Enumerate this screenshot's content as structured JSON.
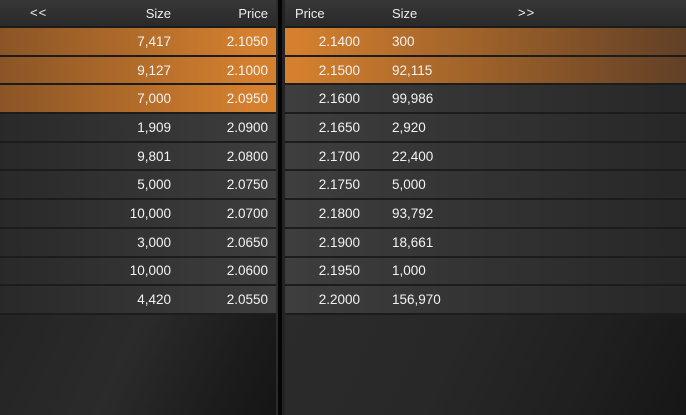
{
  "left_panel": {
    "nav_label": "<<",
    "columns": {
      "size": "Size",
      "price": "Price"
    },
    "rows": [
      {
        "size": "7,417",
        "price": "2.1050",
        "highlighted": true
      },
      {
        "size": "9,127",
        "price": "2.1000",
        "highlighted": true
      },
      {
        "size": "7,000",
        "price": "2.0950",
        "highlighted": true
      },
      {
        "size": "1,909",
        "price": "2.0900",
        "highlighted": false
      },
      {
        "size": "9,801",
        "price": "2.0800",
        "highlighted": false
      },
      {
        "size": "5,000",
        "price": "2.0750",
        "highlighted": false
      },
      {
        "size": "10,000",
        "price": "2.0700",
        "highlighted": false
      },
      {
        "size": "3,000",
        "price": "2.0650",
        "highlighted": false
      },
      {
        "size": "10,000",
        "price": "2.0600",
        "highlighted": false
      },
      {
        "size": "4,420",
        "price": "2.0550",
        "highlighted": false
      }
    ]
  },
  "right_panel": {
    "nav_label": ">>",
    "columns": {
      "price": "Price",
      "size": "Size"
    },
    "rows": [
      {
        "price": "2.1400",
        "size": "300",
        "highlighted": true
      },
      {
        "price": "2.1500",
        "size": "92,115",
        "highlighted": true
      },
      {
        "price": "2.1600",
        "size": "99,986",
        "highlighted": false
      },
      {
        "price": "2.1650",
        "size": "2,920",
        "highlighted": false
      },
      {
        "price": "2.1700",
        "size": "22,400",
        "highlighted": false
      },
      {
        "price": "2.1750",
        "size": "5,000",
        "highlighted": false
      },
      {
        "price": "2.1800",
        "size": "93,792",
        "highlighted": false
      },
      {
        "price": "2.1900",
        "size": "18,661",
        "highlighted": false
      },
      {
        "price": "2.1950",
        "size": "1,000",
        "highlighted": false
      },
      {
        "price": "2.2000",
        "size": "156,970",
        "highlighted": false
      }
    ]
  },
  "colors": {
    "highlight_orange": "#d5802e",
    "highlight_orange_dark_left": "#8a5526",
    "highlight_orange_dark_right": "#614026",
    "row_background": "#333333",
    "header_background": "#2f2f2f",
    "text": "#f2f2f2"
  }
}
